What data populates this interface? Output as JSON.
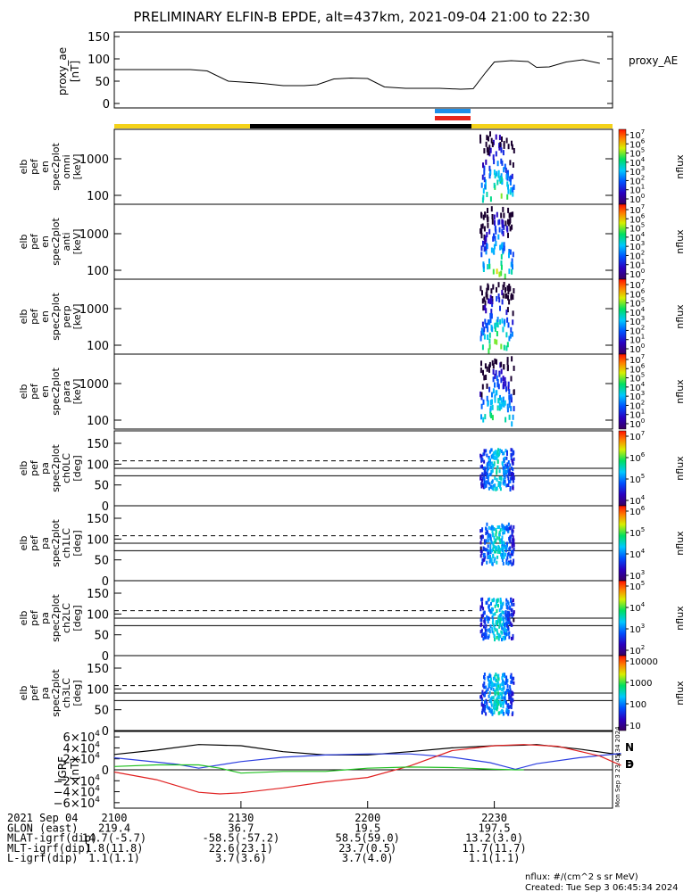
{
  "title": "PRELIMINARY ELFIN-B EPDE, alt=437km, 2021-09-04 21:00 to 22:30",
  "chart_data": [
    {
      "type": "line",
      "panel": "proxy_ae",
      "ylabel": [
        "proxy_ae",
        "[nT]"
      ],
      "legend": "proxy_AE",
      "yticks": [
        "0",
        "50",
        "100",
        "150"
      ],
      "ylim": [
        -10,
        160
      ],
      "x_minutes": [
        0,
        12,
        18,
        22,
        27,
        32,
        35,
        40,
        45,
        48,
        52,
        56,
        60,
        64,
        69,
        73,
        77,
        82,
        85,
        88,
        90,
        94,
        98,
        100,
        103,
        107,
        111,
        115
      ],
      "values": [
        76,
        76,
        76,
        73,
        50,
        47,
        45,
        40,
        40,
        42,
        55,
        57,
        56,
        37,
        34,
        34,
        34,
        32,
        33,
        70,
        93,
        96,
        94,
        81,
        82,
        93,
        98,
        90
      ]
    },
    {
      "type": "heatmap",
      "panel": "energy spectrograms",
      "panels": [
        {
          "ylabel": [
            "elb",
            "pef",
            "en",
            "spec2plot",
            "omni",
            "[keV]"
          ]
        },
        {
          "ylabel": [
            "elb",
            "pef",
            "en",
            "spec2plot",
            "anti",
            "[keV]"
          ]
        },
        {
          "ylabel": [
            "elb",
            "pef",
            "en",
            "spec2plot",
            "perp",
            "[keV]"
          ]
        },
        {
          "ylabel": [
            "elb",
            "pef",
            "en",
            "spec2plot",
            "para",
            "[keV]"
          ]
        }
      ],
      "yticks": [
        "100",
        "1000"
      ],
      "colorbar_label": "nflux",
      "colorbar_ticks": [
        "10",
        "10",
        "10",
        "10",
        "10",
        "10",
        "10",
        "10"
      ],
      "colorbar_exp": [
        "0",
        "1",
        "2",
        "3",
        "4",
        "5",
        "6",
        "7"
      ]
    },
    {
      "type": "heatmap",
      "panel": "pitch-angle spectrograms",
      "panels": [
        {
          "ylabel": [
            "elb",
            "pef",
            "pa",
            "spec2plot",
            "ch0LC",
            "[deg]"
          ],
          "cb_ticks": [
            "10",
            "10",
            "10",
            "10"
          ],
          "cb_exp": [
            "4",
            "5",
            "6",
            "7"
          ]
        },
        {
          "ylabel": [
            "elb",
            "pef",
            "pa",
            "spec2plot",
            "ch1LC",
            "[deg]"
          ],
          "cb_ticks": [
            "10",
            "10",
            "10",
            "10"
          ],
          "cb_exp": [
            "3",
            "4",
            "5",
            "6"
          ]
        },
        {
          "ylabel": [
            "elb",
            "pef",
            "pa",
            "spec2plot",
            "ch2LC",
            "[deg]"
          ],
          "cb_ticks": [
            "10",
            "10",
            "10",
            "10"
          ],
          "cb_exp": [
            "2",
            "3",
            "4",
            "5"
          ]
        },
        {
          "ylabel": [
            "elb",
            "pef",
            "pa",
            "spec2plot",
            "ch3LC",
            "[deg]"
          ],
          "cb_ticks": [
            "10",
            "100",
            "1000",
            "10000"
          ],
          "cb_exp": [
            "",
            "",
            "",
            ""
          ]
        }
      ],
      "yticks": [
        "0",
        "50",
        "100",
        "150"
      ],
      "ylim": [
        0,
        180
      ],
      "lines_deg": [
        72,
        90,
        108
      ],
      "colorbar_label": "nflux"
    },
    {
      "type": "line",
      "panel": "IGRF",
      "ylabel": [
        "IGRF",
        "[nT]"
      ],
      "ylim": [
        -70000,
        70000
      ],
      "yticks": [
        "-6",
        "-4",
        "-2",
        "0",
        "2",
        "4",
        "6"
      ],
      "ytick_exp": "4",
      "legend": [
        "N",
        "E",
        "D"
      ],
      "side_note": [
        "Mon Sep 3 23:45:34 2024"
      ],
      "series": [
        {
          "name": "N",
          "x_minutes": [
            0,
            10,
            20,
            30,
            40,
            50,
            60,
            70,
            80,
            90,
            97,
            100,
            110,
            120
          ],
          "values": [
            28000,
            36000,
            46000,
            44000,
            33000,
            27000,
            27000,
            33000,
            40000,
            44000,
            45000,
            46000,
            38000,
            27000
          ]
        },
        {
          "name": "E",
          "x_minutes": [
            0,
            10,
            15,
            20,
            30,
            40,
            50,
            60,
            70,
            80,
            89,
            95,
            100,
            110,
            120
          ],
          "values": [
            22000,
            14000,
            10000,
            3000,
            15000,
            23000,
            27000,
            29000,
            29000,
            23000,
            13000,
            1000,
            11000,
            22000,
            30000
          ]
        },
        {
          "name": "D",
          "x_minutes": [
            0,
            10,
            20,
            25,
            30,
            40,
            50,
            60,
            70,
            80,
            90,
            97,
            105,
            115,
            120
          ],
          "values": [
            -4000,
            -18000,
            -41000,
            -44000,
            -42000,
            -33000,
            -22000,
            -14000,
            7000,
            35000,
            44000,
            46000,
            43000,
            25000,
            8000
          ]
        },
        {
          "name": "green",
          "x_minutes": [
            0,
            10,
            20,
            25,
            30,
            40,
            50,
            60,
            70,
            80,
            90,
            95,
            97
          ],
          "values": [
            6000,
            9000,
            9000,
            3000,
            -6000,
            -3000,
            -3000,
            3000,
            5000,
            4000,
            1000,
            0,
            0
          ]
        }
      ]
    }
  ],
  "time_axis": {
    "row_labels": [
      "2021 Sep 04",
      "GLON (east)",
      "MLAT-igrf(dip)",
      "MLT-igrf(dip)",
      "L-igrf(dip)"
    ],
    "columns": [
      {
        "values": [
          "2100",
          "219.4",
          "14.7(-5.7)",
          "1.8(11.8)",
          "1.1(1.1)"
        ]
      },
      {
        "values": [
          "2130",
          "36.7",
          "-58.5(-57.2)",
          "22.6(23.1)",
          "3.7(3.6)"
        ]
      },
      {
        "values": [
          "2200",
          "19.5",
          "58.5(59.0)",
          "23.7(0.5)",
          "3.7(4.0)"
        ]
      },
      {
        "values": [
          "2230",
          "197.5",
          "13.2(3.0)",
          "11.7(11.7)",
          "1.1(1.1)"
        ]
      }
    ]
  },
  "footer": {
    "units": "nflux: #/(cm^2 s sr MeV)",
    "created": "Created: Tue Sep  3 06:45:34 2024"
  },
  "colors": {
    "yellow_bar": "#f4d21a",
    "black_bar": "#000000",
    "blue_marker": "#1e8ee8",
    "red_marker": "#e8261e",
    "n_color": "#000000",
    "e_color": "#2d3fe0",
    "d_color": "#e02020",
    "green_color": "#20c020"
  }
}
